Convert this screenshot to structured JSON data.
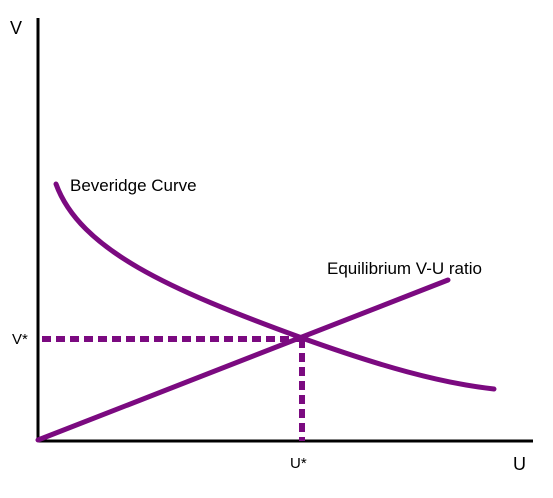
{
  "diagram": {
    "axis_labels": {
      "y": "V",
      "x": "U"
    },
    "curves": {
      "beveridge": "Beveridge Curve",
      "equilibrium": "Equilibrium V-U ratio"
    },
    "equilibrium_point": {
      "v_label": "V*",
      "u_label": "U*"
    }
  },
  "colors": {
    "curve": "#7b0a80",
    "axis": "#000000",
    "text": "#000000"
  }
}
